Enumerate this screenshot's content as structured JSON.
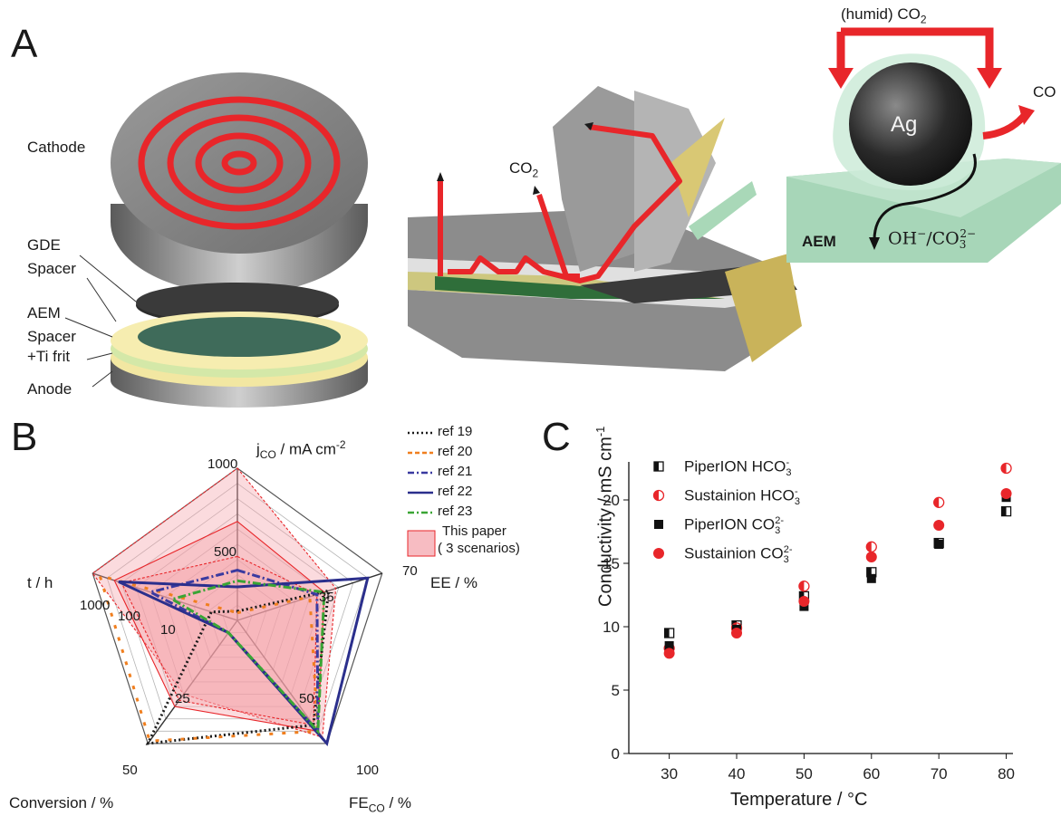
{
  "panels": {
    "a": "A",
    "b": "B",
    "c": "C"
  },
  "panel_a": {
    "labels": {
      "cathode": "Cathode",
      "gde": "GDE",
      "spacer1": "Spacer",
      "aem": "AEM",
      "spacer2": "Spacer",
      "ti_frit": "+Ti frit",
      "anode": "Anode",
      "co2_inlet": "CO",
      "co2_inlet_sub": "2",
      "humid_co2": "(humid) CO",
      "humid_co2_sub": "2",
      "co_out": "CO",
      "ag": "Ag",
      "aem_block": "AEM",
      "ions": "OH",
      "ions_sup1": "−",
      "ions_mid": "/CO",
      "ions_sub": "3",
      "ions_sup2": "2−"
    },
    "colors": {
      "channel": "#e8262a",
      "membrane": "#bfe3cc",
      "spacer": "#e8dc8e",
      "metal": "#8a8a8a"
    }
  },
  "chart_data": [
    {
      "type": "radar",
      "panel": "B",
      "axes": [
        {
          "name": "j",
          "sub": "CO",
          "unit": " / mA cm",
          "sup": "-2",
          "ticks": [
            "1000",
            "500"
          ]
        },
        {
          "name": "EE / %",
          "ticks": [
            "70",
            "35"
          ]
        },
        {
          "name": "FE",
          "sub": "CO",
          "unit": " / %",
          "ticks": [
            "100",
            "50"
          ]
        },
        {
          "name": "Conversion / %",
          "ticks": [
            "50",
            "25"
          ]
        },
        {
          "name": "t / h",
          "ticks": [
            "1000",
            "100",
            "10"
          ]
        }
      ],
      "grid": true,
      "legend_position": "top-right",
      "legend": [
        {
          "label": "ref 19",
          "style": "dotted",
          "color": "#1a1a1a"
        },
        {
          "label": "ref 20",
          "style": "dashed",
          "color": "#f07f1f"
        },
        {
          "label": "ref 21",
          "style": "dashdot",
          "color": "#3a3aa0"
        },
        {
          "label": "ref 22",
          "style": "solid",
          "color": "#2b2f8c"
        },
        {
          "label": "ref 23",
          "style": "dashdot",
          "color": "#3aa535"
        },
        {
          "label": "This paper",
          "label2": "( 3 scenarios)",
          "style": "fill",
          "color": "#f4a0a8"
        }
      ],
      "series": [
        {
          "name": "ref 19",
          "color": "#1a1a1a",
          "dash": "2,3",
          "values": [
            0.06,
            0.63,
            0.85,
            1.0,
            0.18
          ]
        },
        {
          "name": "ref 20",
          "color": "#f07f1f",
          "dash": "4,10",
          "values": [
            0.05,
            0.5,
            0.9,
            0.98,
            0.95
          ]
        },
        {
          "name": "ref 21",
          "color": "#3a3aa0",
          "dash": "9,3,2,3",
          "values": [
            0.33,
            0.55,
            0.9,
            0.1,
            0.6
          ]
        },
        {
          "name": "ref 22",
          "color": "#2b2f8c",
          "dash": "",
          "values": [
            0.22,
            0.9,
            1.0,
            0.1,
            0.82
          ]
        },
        {
          "name": "ref 23",
          "color": "#3aa535",
          "dash": "9,3,2,3",
          "values": [
            0.26,
            0.6,
            0.9,
            0.1,
            0.45
          ]
        }
      ],
      "scenarios": [
        {
          "values": [
            1.0,
            0.68,
            0.95,
            0.6,
            1.0
          ]
        },
        {
          "values": [
            0.65,
            0.6,
            0.9,
            0.7,
            0.85
          ]
        },
        {
          "values": [
            0.42,
            0.55,
            0.85,
            0.65,
            0.8
          ]
        }
      ]
    },
    {
      "type": "scatter",
      "panel": "C",
      "xlabel": "Temperature / °C",
      "ylabel": "Conductivity / mS cm",
      "ylabel_sup": "-1",
      "xlim": [
        24,
        81
      ],
      "ylim": [
        0,
        23
      ],
      "xticks": [
        30,
        40,
        50,
        60,
        70,
        80
      ],
      "yticks": [
        0,
        5,
        10,
        15,
        20
      ],
      "legend_position": "top-left",
      "series": [
        {
          "name": "PiperION HCO",
          "sub": "3",
          "sup": "-",
          "color": "#111111",
          "marker": "square-half",
          "x": [
            30,
            40,
            50,
            60,
            70,
            80
          ],
          "y": [
            9.5,
            10.1,
            12.4,
            14.3,
            16.6,
            19.1
          ]
        },
        {
          "name": "Sustainion HCO",
          "sub": "3",
          "sup": "-",
          "color": "#e8262a",
          "marker": "circle-half",
          "x": [
            30,
            40,
            50,
            60,
            70,
            80
          ],
          "y": [
            8.3,
            9.9,
            13.2,
            16.3,
            19.8,
            22.5
          ]
        },
        {
          "name": "PiperION CO",
          "sub": "3",
          "sup": "2-",
          "color": "#111111",
          "marker": "square",
          "x": [
            30,
            40,
            50,
            60,
            70,
            80
          ],
          "y": [
            8.5,
            9.8,
            11.6,
            13.8,
            16.5,
            20.2
          ]
        },
        {
          "name": "Sustainion CO",
          "sub": "3",
          "sup": "2-",
          "color": "#e8262a",
          "marker": "circle",
          "x": [
            30,
            40,
            50,
            60,
            70,
            80
          ],
          "y": [
            7.9,
            9.5,
            12.0,
            15.5,
            18.0,
            20.5
          ]
        }
      ]
    }
  ]
}
